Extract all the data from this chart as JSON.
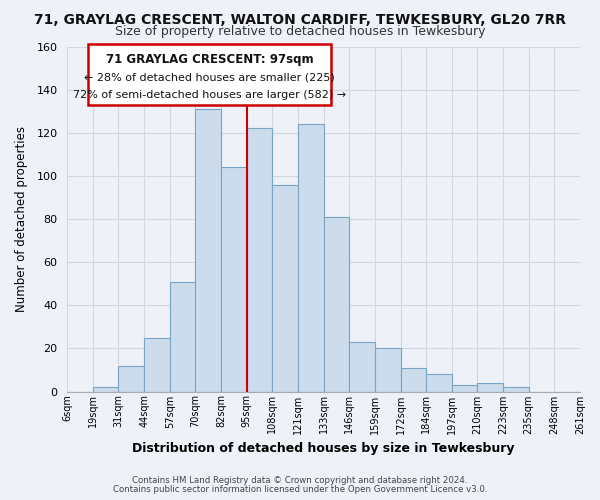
{
  "title1": "71, GRAYLAG CRESCENT, WALTON CARDIFF, TEWKESBURY, GL20 7RR",
  "title2": "Size of property relative to detached houses in Tewkesbury",
  "xlabel": "Distribution of detached houses by size in Tewkesbury",
  "ylabel": "Number of detached properties",
  "footer1": "Contains HM Land Registry data © Crown copyright and database right 2024.",
  "footer2": "Contains public sector information licensed under the Open Government Licence v3.0.",
  "bin_labels": [
    "6sqm",
    "19sqm",
    "31sqm",
    "44sqm",
    "57sqm",
    "70sqm",
    "82sqm",
    "95sqm",
    "108sqm",
    "121sqm",
    "133sqm",
    "146sqm",
    "159sqm",
    "172sqm",
    "184sqm",
    "197sqm",
    "210sqm",
    "223sqm",
    "235sqm",
    "248sqm",
    "261sqm"
  ],
  "bar_heights": [
    0,
    2,
    12,
    25,
    51,
    131,
    104,
    122,
    96,
    124,
    81,
    23,
    20,
    11,
    8,
    3,
    4,
    2,
    0,
    0
  ],
  "bar_color": "#ccdcec",
  "bar_edge_color": "#7aa4c4",
  "vline_color": "#cc0000",
  "vline_x_index": 7,
  "annotation_title": "71 GRAYLAG CRESCENT: 97sqm",
  "annotation_line1": "← 28% of detached houses are smaller (225)",
  "annotation_line2": "72% of semi-detached houses are larger (582) →",
  "annotation_box_color": "#ffffff",
  "annotation_box_edge": "#cc0000",
  "ylim": [
    0,
    160
  ],
  "yticks": [
    0,
    20,
    40,
    60,
    80,
    100,
    120,
    140,
    160
  ],
  "grid_color": "#d0d8e4",
  "background_color": "#eef2f8",
  "plot_background": "#eef2f8",
  "title1_fontsize": 10,
  "title2_fontsize": 9
}
